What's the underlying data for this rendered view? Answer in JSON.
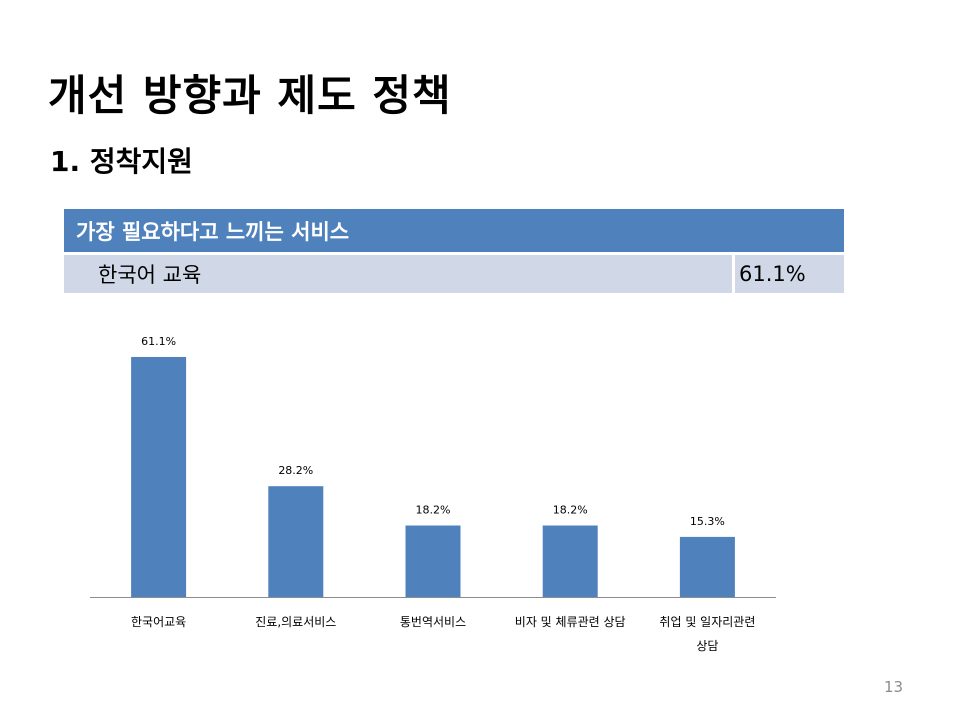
{
  "slide": {
    "title": "개선 방향과 제도 정책",
    "subtitle": "1. 정착지원",
    "page_number": "13"
  },
  "summary_table": {
    "header": "가장 필요하다고 느끼는 서비스",
    "rows": [
      {
        "name": "한국어 교육",
        "value": "61.1%"
      }
    ]
  },
  "chart_data": {
    "type": "bar",
    "categories": [
      [
        "한국어교육"
      ],
      [
        "진료,의료서비스"
      ],
      [
        "통번역서비스"
      ],
      [
        "비자 및 체류관련 상담"
      ],
      [
        "취업 및 일자리관련",
        "상담"
      ]
    ],
    "values": [
      61.1,
      28.2,
      18.2,
      18.2,
      15.3
    ],
    "data_labels": [
      "61.1%",
      "28.2%",
      "18.2%",
      "18.2%",
      "15.3%"
    ],
    "ylim": [
      0,
      70
    ],
    "grid": false,
    "legend": "none",
    "bar_color": "#4f81bd"
  }
}
